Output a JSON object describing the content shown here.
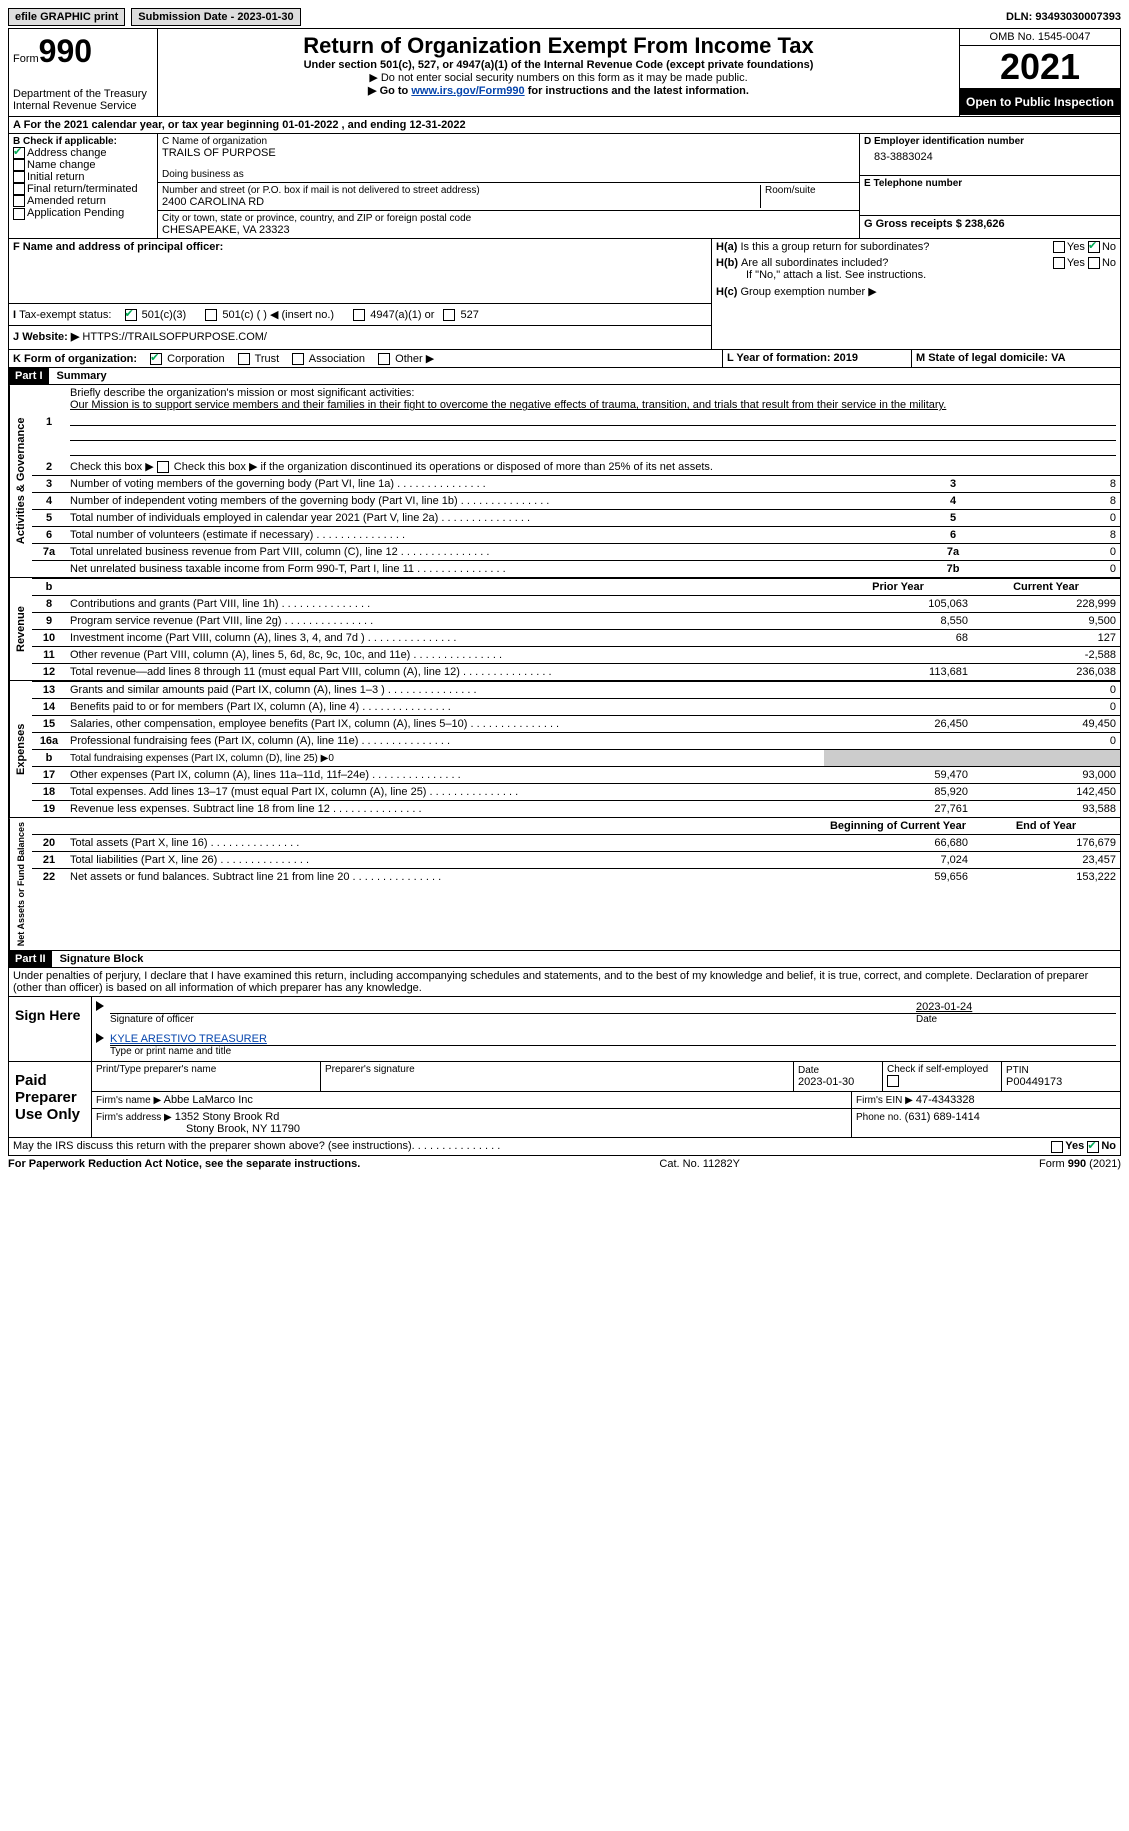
{
  "top": {
    "efile": "efile GRAPHIC print",
    "sub_label": "Submission Date - 2023-01-30",
    "dln": "DLN: 93493030007393"
  },
  "header": {
    "form_word": "Form",
    "form_num": "990",
    "dept": "Department of the Treasury",
    "irs": "Internal Revenue Service",
    "title": "Return of Organization Exempt From Income Tax",
    "sub": "Under section 501(c), 527, or 4947(a)(1) of the Internal Revenue Code (except private foundations)",
    "instr1": "▶ Do not enter social security numbers on this form as it may be made public.",
    "instr2_pre": "▶ Go to ",
    "instr2_link": "www.irs.gov/Form990",
    "instr2_post": " for instructions and the latest information.",
    "omb": "OMB No. 1545-0047",
    "year": "2021",
    "open": "Open to Public Inspection"
  },
  "sectionA": {
    "a_text": "For the 2021 calendar year, or tax year beginning 01-01-2022    , and ending 12-31-2022",
    "b_label": "B Check if applicable:",
    "b_opts": [
      "Address change",
      "Name change",
      "Initial return",
      "Final return/terminated",
      "Amended return",
      "Application Pending"
    ],
    "c_label": "C Name of organization",
    "c_val": "TRAILS OF PURPOSE",
    "dba": "Doing business as",
    "addr_label": "Number and street (or P.O. box if mail is not delivered to street address)",
    "addr_val": "2400 CAROLINA RD",
    "room": "Room/suite",
    "city_label": "City or town, state or province, country, and ZIP or foreign postal code",
    "city_val": "CHESAPEAKE, VA  23323",
    "d_label": "D Employer identification number",
    "d_val": "83-3883024",
    "e_label": "E Telephone number",
    "g_label": "G Gross receipts $ 238,626",
    "f_label": "F  Name and address of principal officer:",
    "ha": "Is this a group return for subordinates?",
    "hb": "Are all subordinates included?",
    "hb_note": "If \"No,\" attach a list. See instructions.",
    "hc": "Group exemption number ▶",
    "i_label": "Tax-exempt status:",
    "i_opts": [
      "501(c)(3)",
      "501(c) (  ) ◀ (insert no.)",
      "4947(a)(1) or",
      "527"
    ],
    "j_label": "Website: ▶",
    "j_val": "HTTPS://TRAILSOFPURPOSE.COM/",
    "k_label": "K Form of organization:",
    "k_opts": [
      "Corporation",
      "Trust",
      "Association",
      "Other ▶"
    ],
    "l_label": "L Year of formation: 2019",
    "m_label": "M State of legal domicile: VA"
  },
  "part1": {
    "header": "Part I",
    "title": "Summary",
    "q1": "Briefly describe the organization's mission or most significant activities:",
    "q1_val": "Our Mission is to support service members and their families in their fight to overcome the negative effects of trauma, transition, and trials that result from their service in the military.",
    "q2": "Check this box ▶       if the organization discontinued its operations or disposed of more than 25% of its net assets.",
    "rows_ag": [
      {
        "n": "3",
        "t": "Number of voting members of the governing body (Part VI, line 1a)",
        "a": "3",
        "v": "8"
      },
      {
        "n": "4",
        "t": "Number of independent voting members of the governing body (Part VI, line 1b)",
        "a": "4",
        "v": "8"
      },
      {
        "n": "5",
        "t": "Total number of individuals employed in calendar year 2021 (Part V, line 2a)",
        "a": "5",
        "v": "0"
      },
      {
        "n": "6",
        "t": "Total number of volunteers (estimate if necessary)",
        "a": "6",
        "v": "8"
      },
      {
        "n": "7a",
        "t": "Total unrelated business revenue from Part VIII, column (C), line 12",
        "a": "7a",
        "v": "0"
      },
      {
        "n": "",
        "t": "Net unrelated business taxable income from Form 990-T, Part I, line 11",
        "a": "7b",
        "v": "0"
      }
    ],
    "col_prior": "Prior Year",
    "col_curr": "Current Year",
    "rows_rev": [
      {
        "n": "8",
        "t": "Contributions and grants (Part VIII, line 1h)",
        "p": "105,063",
        "c": "228,999"
      },
      {
        "n": "9",
        "t": "Program service revenue (Part VIII, line 2g)",
        "p": "8,550",
        "c": "9,500"
      },
      {
        "n": "10",
        "t": "Investment income (Part VIII, column (A), lines 3, 4, and 7d )",
        "p": "68",
        "c": "127"
      },
      {
        "n": "11",
        "t": "Other revenue (Part VIII, column (A), lines 5, 6d, 8c, 9c, 10c, and 11e)",
        "p": "",
        "c": "-2,588"
      },
      {
        "n": "12",
        "t": "Total revenue—add lines 8 through 11 (must equal Part VIII, column (A), line 12)",
        "p": "113,681",
        "c": "236,038"
      }
    ],
    "rows_exp": [
      {
        "n": "13",
        "t": "Grants and similar amounts paid (Part IX, column (A), lines 1–3 )",
        "p": "",
        "c": "0"
      },
      {
        "n": "14",
        "t": "Benefits paid to or for members (Part IX, column (A), line 4)",
        "p": "",
        "c": "0"
      },
      {
        "n": "15",
        "t": "Salaries, other compensation, employee benefits (Part IX, column (A), lines 5–10)",
        "p": "26,450",
        "c": "49,450"
      },
      {
        "n": "16a",
        "t": "Professional fundraising fees (Part IX, column (A), line 11e)",
        "p": "",
        "c": "0"
      },
      {
        "n": "b",
        "t": "Total fundraising expenses (Part IX, column (D), line 25) ▶0",
        "p": "GRAY",
        "c": "GRAY"
      },
      {
        "n": "17",
        "t": "Other expenses (Part IX, column (A), lines 11a–11d, 11f–24e)",
        "p": "59,470",
        "c": "93,000"
      },
      {
        "n": "18",
        "t": "Total expenses. Add lines 13–17 (must equal Part IX, column (A), line 25)",
        "p": "85,920",
        "c": "142,450"
      },
      {
        "n": "19",
        "t": "Revenue less expenses. Subtract line 18 from line 12",
        "p": "27,761",
        "c": "93,588"
      }
    ],
    "col_begin": "Beginning of Current Year",
    "col_end": "End of Year",
    "rows_net": [
      {
        "n": "20",
        "t": "Total assets (Part X, line 16)",
        "p": "66,680",
        "c": "176,679"
      },
      {
        "n": "21",
        "t": "Total liabilities (Part X, line 26)",
        "p": "7,024",
        "c": "23,457"
      },
      {
        "n": "22",
        "t": "Net assets or fund balances. Subtract line 21 from line 20",
        "p": "59,656",
        "c": "153,222"
      }
    ],
    "vert_ag": "Activities & Governance",
    "vert_rev": "Revenue",
    "vert_exp": "Expenses",
    "vert_net": "Net Assets or Fund Balances"
  },
  "part2": {
    "header": "Part II",
    "title": "Signature Block",
    "decl": "Under penalties of perjury, I declare that I have examined this return, including accompanying schedules and statements, and to the best of my knowledge and belief, it is true, correct, and complete. Declaration of preparer (other than officer) is based on all information of which preparer has any knowledge.",
    "sign_here": "Sign Here",
    "sig_officer": "Signature of officer",
    "sig_date": "2023-01-24",
    "date_lbl": "Date",
    "name_title": "KYLE ARESTIVO  TREASURER",
    "name_lbl": "Type or print name and title",
    "paid": "Paid Preparer Use Only",
    "prep_name_lbl": "Print/Type preparer's name",
    "prep_sig_lbl": "Preparer's signature",
    "prep_date_lbl": "Date",
    "prep_date": "2023-01-30",
    "check_if": "Check        if self-employed",
    "ptin_lbl": "PTIN",
    "ptin": "P00449173",
    "firm_name_lbl": "Firm's name    ▶",
    "firm_name": "Abbe LaMarco Inc",
    "firm_ein_lbl": "Firm's EIN ▶",
    "firm_ein": "47-4343328",
    "firm_addr_lbl": "Firm's address ▶",
    "firm_addr1": "1352 Stony Brook Rd",
    "firm_addr2": "Stony Brook, NY  11790",
    "phone_lbl": "Phone no.",
    "phone": "(631) 689-1414",
    "discuss": "May the IRS discuss this return with the preparer shown above? (see instructions)",
    "yes": "Yes",
    "no": "No"
  },
  "footer": {
    "left": "For Paperwork Reduction Act Notice, see the separate instructions.",
    "center": "Cat. No. 11282Y",
    "right": "Form 990 (2021)"
  }
}
